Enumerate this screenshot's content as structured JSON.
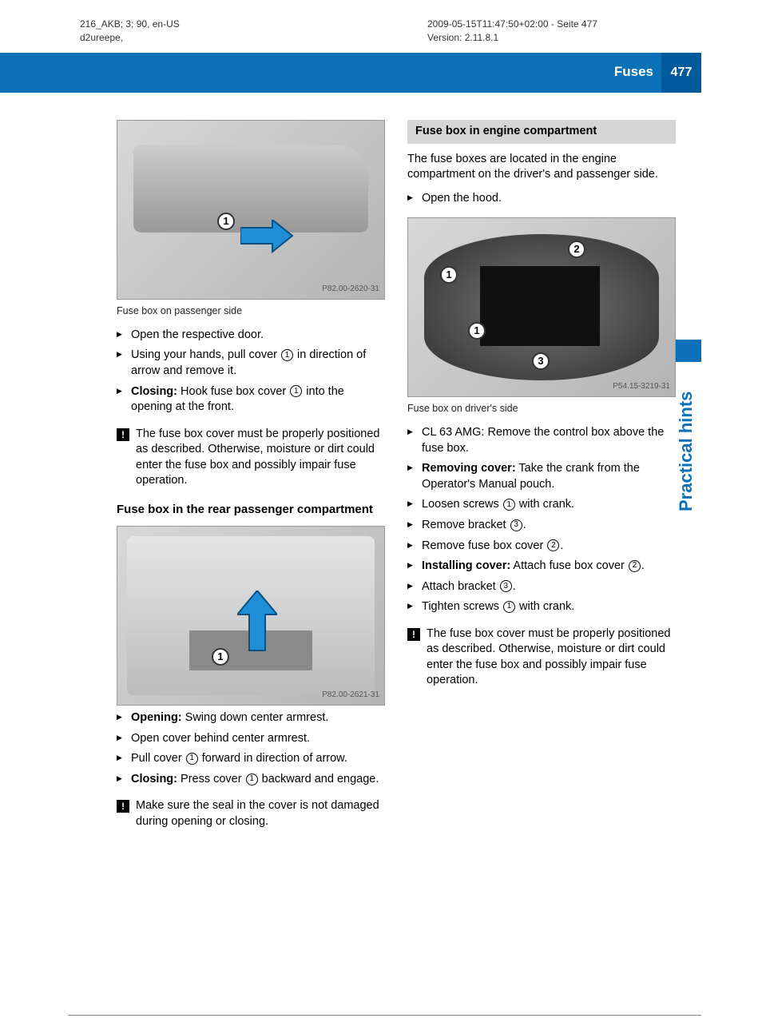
{
  "meta": {
    "left_line1": "216_AKB; 3; 90, en-US",
    "left_line2": "d2ureepe,",
    "right_line1": "2009-05-15T11:47:50+02:00 - Seite 477",
    "right_line2": "Version: 2.11.8.1"
  },
  "banner": {
    "title": "Fuses",
    "page": "477",
    "banner_bg": "#0a71b9",
    "pagebox_bg": "#005a9c",
    "text_color": "#ffffff"
  },
  "side": {
    "label": "Practical hints",
    "tab_bg": "#0a71b9",
    "label_color": "#0a71b9"
  },
  "left_col": {
    "fig1": {
      "caption": "Fuse box on passenger side",
      "watermark": "P82.00-2620-31",
      "callouts": [
        "1"
      ]
    },
    "steps1": [
      {
        "pre": "",
        "text": "Open the respective door."
      },
      {
        "pre": "",
        "text_parts": [
          "Using your hands, pull cover ",
          {
            "circ": "1"
          },
          " in direction of arrow and remove it."
        ]
      },
      {
        "pre": "Closing:",
        "text_parts": [
          " Hook fuse box cover ",
          {
            "circ": "1"
          },
          " into the opening at the front."
        ]
      }
    ],
    "notice1": "The fuse box cover must be properly positioned as described. Otherwise, moisture or dirt could enter the fuse box and possibly impair fuse operation.",
    "subheading": "Fuse box in the rear passenger compartment",
    "fig2": {
      "caption": "",
      "watermark": "P82.00-2621-31",
      "callouts": [
        "1"
      ]
    },
    "steps2": [
      {
        "pre": "Opening:",
        "text": " Swing down center armrest."
      },
      {
        "pre": "",
        "text": "Open cover behind center armrest."
      },
      {
        "pre": "",
        "text_parts": [
          "Pull cover ",
          {
            "circ": "1"
          },
          " forward in direction of arrow."
        ]
      },
      {
        "pre": "Closing:",
        "text_parts": [
          " Press cover ",
          {
            "circ": "1"
          },
          " backward and engage."
        ]
      }
    ],
    "notice2": "Make sure the seal in the cover is not damaged during opening or closing."
  },
  "right_col": {
    "grey_heading": "Fuse box in engine compartment",
    "intro": "The fuse boxes are located in the engine compartment on the driver's and passenger side.",
    "steps0": [
      {
        "pre": "",
        "text": "Open the hood."
      }
    ],
    "fig3": {
      "caption": "Fuse box on driver's side",
      "watermark": "P54.15-3219-31",
      "callouts": [
        "1",
        "2",
        "3"
      ]
    },
    "steps3": [
      {
        "pre": "",
        "text": "CL 63 AMG: Remove the control box above the fuse box."
      },
      {
        "pre": "Removing cover:",
        "text": " Take the crank from the Operator's Manual pouch."
      },
      {
        "pre": "",
        "text_parts": [
          "Loosen screws ",
          {
            "circ": "1"
          },
          " with crank."
        ]
      },
      {
        "pre": "",
        "text_parts": [
          "Remove bracket ",
          {
            "circ": "3"
          },
          "."
        ]
      },
      {
        "pre": "",
        "text_parts": [
          "Remove fuse box cover ",
          {
            "circ": "2"
          },
          "."
        ]
      },
      {
        "pre": "Installing cover:",
        "text_parts": [
          " Attach fuse box cover ",
          {
            "circ": "2"
          },
          "."
        ]
      },
      {
        "pre": "",
        "text_parts": [
          "Attach bracket ",
          {
            "circ": "3"
          },
          "."
        ]
      },
      {
        "pre": "",
        "text_parts": [
          "Tighten screws ",
          {
            "circ": "1"
          },
          " with crank."
        ]
      }
    ],
    "notice3": "The fuse box cover must be properly positioned as described. Otherwise, moisture or dirt could enter the fuse box and possibly impair fuse operation."
  }
}
